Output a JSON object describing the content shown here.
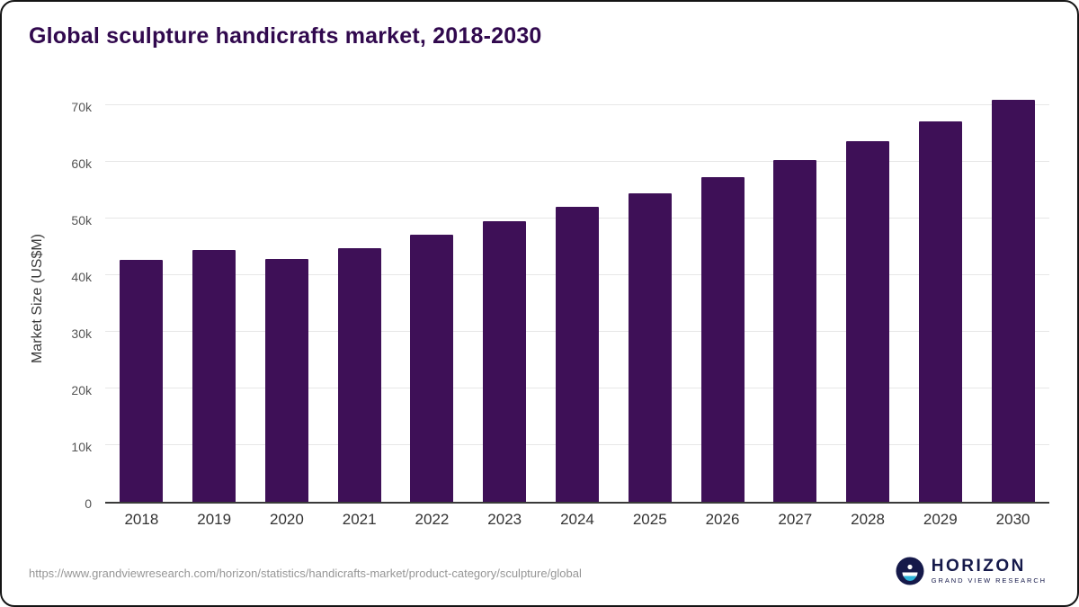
{
  "title": "Global sculpture handicrafts market, 2018-2030",
  "chart_data": {
    "type": "bar",
    "title": "Global sculpture handicrafts market, 2018-2030",
    "xlabel": "",
    "ylabel": "Market Size (US$M)",
    "categories": [
      "2018",
      "2019",
      "2020",
      "2021",
      "2022",
      "2023",
      "2024",
      "2025",
      "2026",
      "2027",
      "2028",
      "2029",
      "2030"
    ],
    "values": [
      42700,
      44500,
      42900,
      44800,
      47100,
      49500,
      52000,
      54500,
      57300,
      60300,
      63700,
      67100,
      71000
    ],
    "ylim": [
      0,
      71500
    ],
    "yticks": [
      0,
      10000,
      20000,
      30000,
      40000,
      50000,
      60000,
      70000
    ],
    "ytick_labels": [
      "0",
      "10k",
      "20k",
      "30k",
      "40k",
      "50k",
      "60k",
      "70k"
    ],
    "grid": true,
    "legend": "none",
    "bar_color": "#3e1057"
  },
  "colors": {
    "title": "#31094e",
    "bar": "#3e1057",
    "gridline": "#e7e7e7",
    "axis_text": "#555555",
    "logo_navy": "#15194a"
  },
  "footer": {
    "source_url": "https://www.grandviewresearch.com/horizon/statistics/handicrafts-market/product-category/sculpture/global",
    "logo_name": "HORIZON",
    "logo_tagline": "GRAND VIEW RESEARCH"
  }
}
